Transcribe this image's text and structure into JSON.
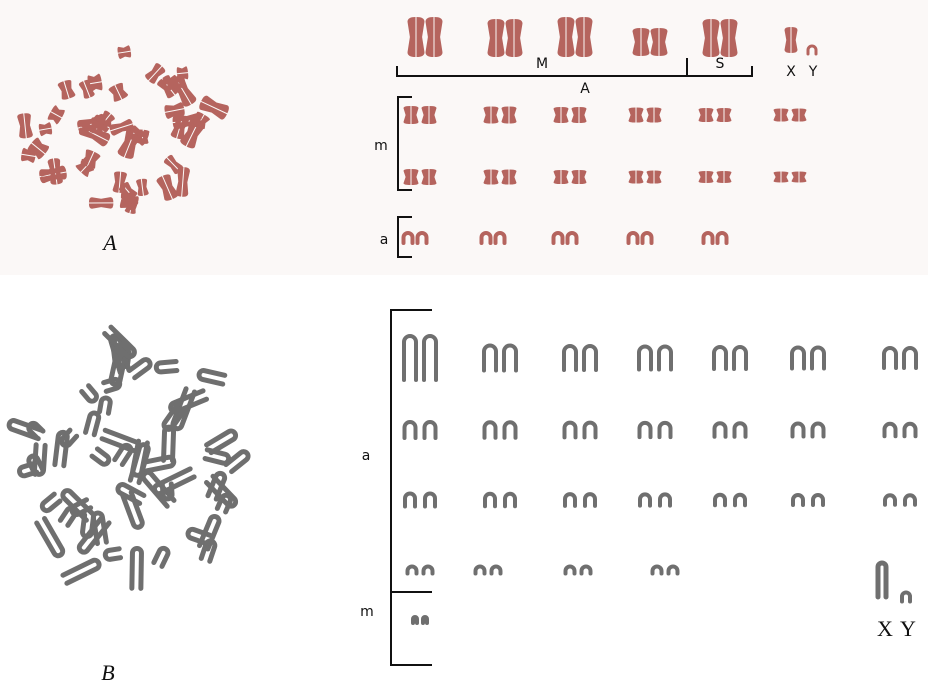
{
  "panel_a": {
    "label": "A",
    "group_labels": [
      "M",
      "S",
      "A"
    ],
    "sex_labels": [
      "X",
      "Y"
    ],
    "row_labels": [
      "m",
      "a"
    ]
  },
  "panel_b": {
    "label": "B",
    "row_labels": [
      "a",
      "m"
    ],
    "sex_labels": [
      "X",
      "Y"
    ]
  }
}
